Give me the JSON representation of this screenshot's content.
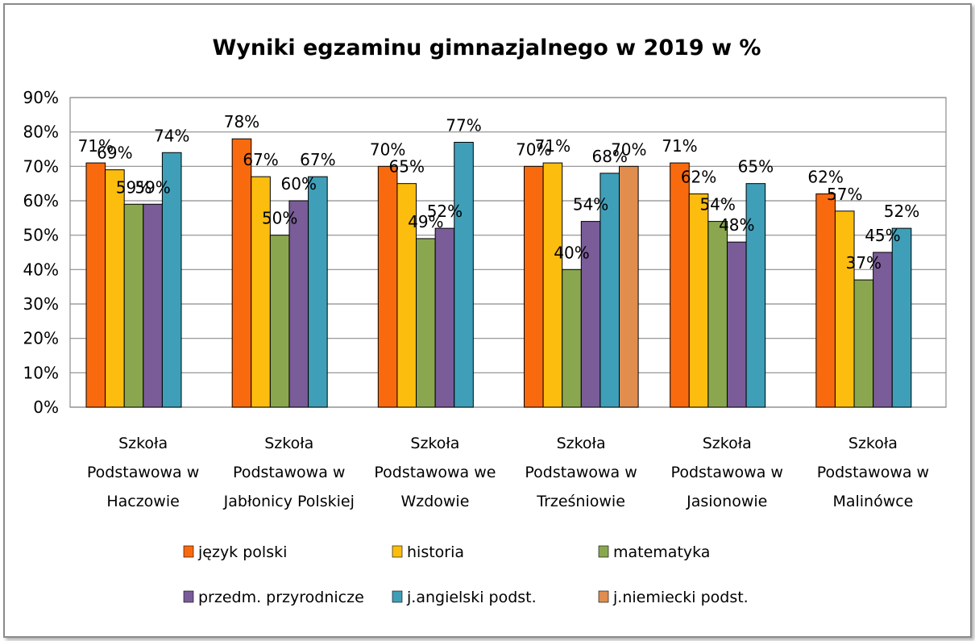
{
  "chart_data": {
    "type": "bar",
    "title": "Wyniki egzaminu gimnazjalnego w 2019 w %",
    "ylim": [
      0,
      90
    ],
    "y_ticks": [
      "0%",
      "10%",
      "20%",
      "30%",
      "40%",
      "50%",
      "60%",
      "70%",
      "80%",
      "90%"
    ],
    "y_tick_values": [
      0,
      10,
      20,
      30,
      40,
      50,
      60,
      70,
      80,
      90
    ],
    "grid": true,
    "legend_position": "bottom",
    "categories": [
      [
        "Szkoła",
        "Podstawowa w",
        "Haczowie"
      ],
      [
        "Szkoła",
        "Podstawowa w",
        "Jabłonicy Polskiej"
      ],
      [
        "Szkoła",
        "Podstawowa we",
        "Wzdowie"
      ],
      [
        "Szkoła",
        "Podstawowa w",
        "Trześniowie"
      ],
      [
        "Szkoła",
        "Podstawowa w",
        "Jasionowie"
      ],
      [
        "Szkoła",
        "Podstawowa w",
        "Malinówce"
      ]
    ],
    "series": [
      {
        "name": "język polski",
        "color": "#f96a0e",
        "values": [
          71,
          78,
          70,
          70,
          71,
          62
        ],
        "labels": [
          "71%",
          "78%",
          "70%",
          "70%",
          "71%",
          "62%"
        ]
      },
      {
        "name": "historia",
        "color": "#fcbd0f",
        "values": [
          69,
          67,
          65,
          71,
          62,
          57
        ],
        "labels": [
          "69%",
          "67%",
          "65%",
          "71%",
          "62%",
          "57%"
        ]
      },
      {
        "name": "matematyka",
        "color": "#8aa74f",
        "values": [
          59,
          50,
          49,
          40,
          54,
          37
        ],
        "labels": [
          "59%",
          "50%",
          "49%",
          "40%",
          "54%",
          "37%"
        ]
      },
      {
        "name": "przedm. przyrodnicze",
        "color": "#7a5c98",
        "values": [
          59,
          60,
          52,
          54,
          48,
          45
        ],
        "labels": [
          "59%",
          "60%",
          "52%",
          "54%",
          "48%",
          "45%"
        ]
      },
      {
        "name": "j.angielski podst.",
        "color": "#3f9fb8",
        "values": [
          74,
          67,
          77,
          68,
          65,
          52
        ],
        "labels": [
          "74%",
          "67%",
          "77%",
          "68%",
          "65%",
          "52%"
        ]
      },
      {
        "name": "j.niemiecki podst.",
        "color": "#e08d4e",
        "values": [
          null,
          null,
          null,
          70,
          null,
          null
        ],
        "labels": [
          null,
          null,
          null,
          "70%",
          null,
          null
        ]
      }
    ]
  }
}
